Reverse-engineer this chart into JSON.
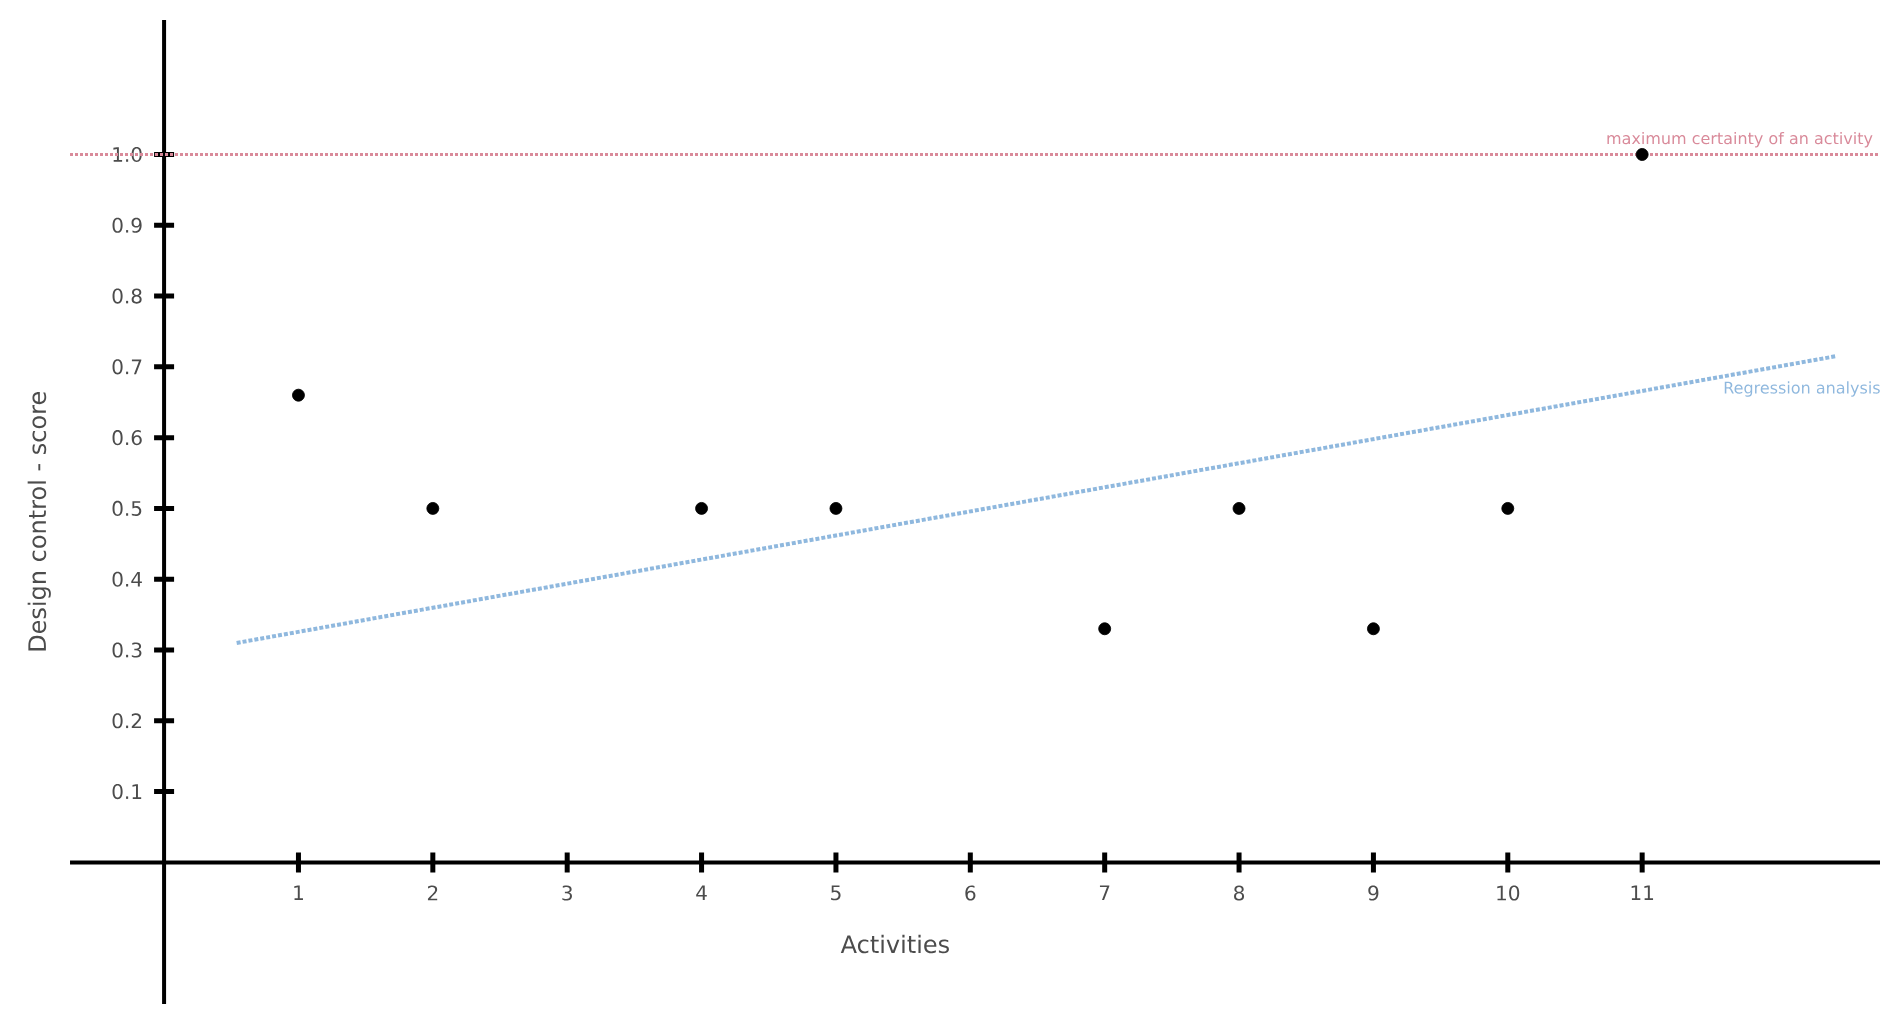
{
  "chart_data": {
    "type": "scatter",
    "xlabel": "Activities",
    "ylabel": "Design control - score",
    "xlim": [
      -0.7,
      12.77
    ],
    "ylim": [
      -0.2,
      1.19
    ],
    "xticks": [
      1,
      2,
      3,
      4,
      5,
      6,
      7,
      8,
      9,
      10,
      11
    ],
    "yticks": [
      0.1,
      0.2,
      0.3,
      0.4,
      0.5,
      0.6,
      0.7,
      0.8,
      0.9,
      {
        "value": 1.0,
        "label": "1.0"
      }
    ],
    "grid": false,
    "legend": false,
    "series": [
      {
        "color": "#000000",
        "marker": "circle",
        "x": [
          1,
          2,
          4,
          5,
          7,
          8,
          9,
          10,
          11
        ],
        "values": [
          0.66,
          0.5,
          0.5,
          0.5,
          0.33,
          0.5,
          0.33,
          0.5,
          1.0
        ]
      },
      {
        "type": "line",
        "name": "Regression analysis",
        "color": "#8fb8de",
        "line_style": "dotted",
        "marker": "none",
        "x": [
          0.54,
          12.44
        ],
        "values": [
          0.31,
          0.715
        ]
      }
    ],
    "ref_lines": [
      {
        "axis": "y",
        "value": 1.0,
        "label": "maximum certainty of an activity",
        "color": "#d98a9a",
        "line_style": "dotted"
      }
    ]
  }
}
